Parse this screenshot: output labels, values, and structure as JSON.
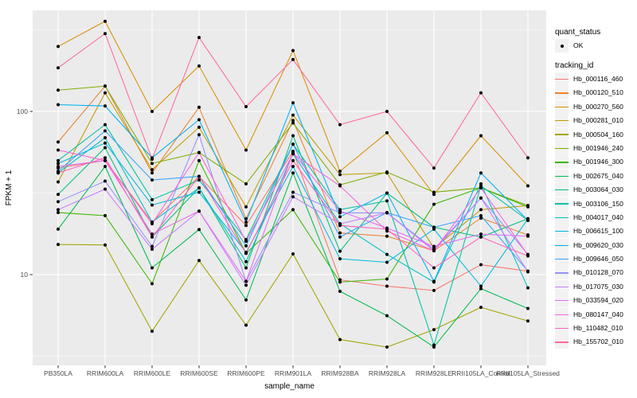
{
  "figure": {
    "bg": "#ffffff",
    "panel_bg": "#ebebeb",
    "grid_color": "#ffffff",
    "tick_color": "#333333",
    "axis_text_color": "#4d4d4d",
    "title_color": "#000000",
    "point_color": "#000000"
  },
  "axes": {
    "x_title": "sample_name",
    "y_title": "FPKM + 1",
    "y_tick_labels": [
      "100",
      "10"
    ],
    "y_tick_values": [
      100,
      10
    ]
  },
  "legend": {
    "quant_title": "quant_status",
    "quant_item_label": "OK",
    "tracking_title": "tracking_id"
  },
  "chart_data": {
    "type": "line",
    "title": "",
    "xlabel": "sample_name",
    "ylabel": "FPKM + 1",
    "y_scale": "log10",
    "ylim": [
      3,
      410
    ],
    "grid": true,
    "legend_position": "right",
    "x_categories": [
      "PB350LA",
      "RRIM600LA",
      "RRIM600LE",
      "RRIM600SE",
      "RRIM600PE",
      "RRIM901LA",
      "RRIM928BA",
      "RRIM928LA",
      "RRIM928LE",
      "RRII105LA_Control",
      "RRII105LA_Stressed"
    ],
    "quant_status": "OK",
    "series": [
      {
        "name": "Hb_000116_460",
        "color": "#F8766D",
        "values": [
          45,
          50,
          21,
          40,
          20,
          57,
          9.3,
          8.5,
          8,
          11.5,
          10.5
        ]
      },
      {
        "name": "Hb_000120_510",
        "color": "#EA8331",
        "values": [
          65,
          143,
          42,
          106,
          22,
          88,
          18,
          17.2,
          14,
          22.2,
          17.5
        ]
      },
      {
        "name": "Hb_000270_560",
        "color": "#D89000",
        "values": [
          250,
          357,
          100,
          190,
          58,
          236,
          43,
          74,
          31,
          71,
          35
        ]
      },
      {
        "name": "Hb_000281_010",
        "color": "#C09B00",
        "values": [
          37,
          130,
          44,
          80,
          26,
          95,
          41,
          42,
          14.5,
          25,
          26.5
        ]
      },
      {
        "name": "Hb_000504_160",
        "color": "#A3A500",
        "values": [
          15.3,
          15.2,
          4.5,
          12.2,
          4.9,
          13.4,
          4.0,
          3.6,
          4.6,
          6.3,
          5.2
        ]
      },
      {
        "name": "Hb_001946_240",
        "color": "#7CAE00",
        "values": [
          135,
          143,
          48,
          56,
          36,
          85,
          35.5,
          42.5,
          32,
          34,
          26.5
        ]
      },
      {
        "name": "Hb_001946_300",
        "color": "#39B600",
        "values": [
          24,
          23,
          8.8,
          50,
          13.5,
          25,
          9.0,
          9.4,
          27,
          34,
          26
        ]
      },
      {
        "name": "Hb_002675_040",
        "color": "#00BB4E",
        "values": [
          19,
          46,
          11,
          18.9,
          7.0,
          42,
          7.9,
          5.6,
          3.6,
          8.2,
          6.2
        ]
      },
      {
        "name": "Hb_003064_030",
        "color": "#00BF7D",
        "values": [
          31,
          60,
          17,
          34,
          11,
          71,
          13.9,
          31.6,
          19.5,
          17,
          22
        ]
      },
      {
        "name": "Hb_003106_150",
        "color": "#00C1A3",
        "values": [
          50,
          83,
          28.8,
          38,
          16.4,
          63,
          25,
          28.3,
          3.7,
          35,
          21.5
        ]
      },
      {
        "name": "Hb_004017_040",
        "color": "#00BFC4",
        "values": [
          42,
          69,
          21,
          34,
          12,
          55,
          20.5,
          13.3,
          9.0,
          36,
          8.3
        ]
      },
      {
        "name": "Hb_006615_100",
        "color": "#00BAE0",
        "values": [
          48,
          64,
          26.7,
          32,
          13.7,
          46,
          12.5,
          11.9,
          19,
          8.5,
          22
        ]
      },
      {
        "name": "Hb_009620_030",
        "color": "#00B0F6",
        "values": [
          110,
          108,
          52,
          89,
          21,
          113,
          22.6,
          31.6,
          9.1,
          42,
          21.5
        ]
      },
      {
        "name": "Hb_009646_050",
        "color": "#35A2FF",
        "values": [
          43,
          76,
          38,
          40,
          15,
          63,
          17,
          24,
          19.5,
          23,
          10.5
        ]
      },
      {
        "name": "Hb_010128_070",
        "color": "#9590FF",
        "values": [
          28,
          37.4,
          14.9,
          72,
          9.1,
          32,
          23.9,
          23.9,
          14.3,
          29.5,
          13.3
        ]
      },
      {
        "name": "Hb_017075_030",
        "color": "#C77CFF",
        "values": [
          25,
          33.4,
          14.3,
          24.5,
          8.6,
          30,
          20.5,
          23.9,
          14,
          29.5,
          10.4
        ]
      },
      {
        "name": "Hb_033594_020",
        "color": "#E76BF3",
        "values": [
          46,
          50,
          17.7,
          24.5,
          9.1,
          56,
          24.5,
          19.3,
          14.9,
          17.7,
          17.2
        ]
      },
      {
        "name": "Hb_080147_040",
        "color": "#FA62DB",
        "values": [
          58,
          50,
          20.5,
          56,
          16,
          55,
          35,
          18.5,
          14,
          34,
          13.2
        ]
      },
      {
        "name": "Hb_110482_010",
        "color": "#FF62BC",
        "values": [
          42,
          52,
          17,
          40,
          13.5,
          50,
          20,
          19,
          11,
          17,
          13
        ]
      },
      {
        "name": "Hb_155702_010",
        "color": "#FF6A98",
        "values": [
          185,
          300,
          51,
          284,
          107,
          208,
          83,
          100,
          45,
          130,
          52
        ]
      }
    ]
  }
}
